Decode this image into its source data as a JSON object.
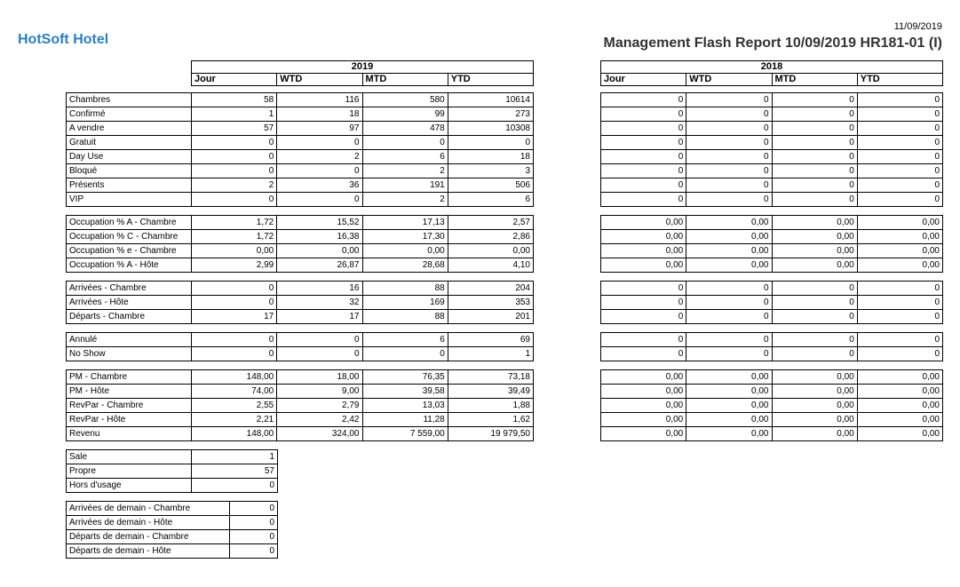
{
  "header": {
    "hotel": "HotSoft Hotel",
    "date": "11/09/2019",
    "title": "Management Flash Report 10/09/2019 HR181-01 (I)"
  },
  "years": [
    "2019",
    "2018"
  ],
  "columns": [
    "Jour",
    "WTD",
    "MTD",
    "YTD"
  ],
  "groups": [
    {
      "rows": [
        {
          "label": "Chambres",
          "values": [
            [
              "58",
              "116",
              "580",
              "10614"
            ],
            [
              "0",
              "0",
              "0",
              "0"
            ]
          ]
        },
        {
          "label": "Confirmé",
          "values": [
            [
              "1",
              "18",
              "99",
              "273"
            ],
            [
              "0",
              "0",
              "0",
              "0"
            ]
          ]
        },
        {
          "label": "A vendre",
          "values": [
            [
              "57",
              "97",
              "478",
              "10308"
            ],
            [
              "0",
              "0",
              "0",
              "0"
            ]
          ]
        },
        {
          "label": "Gratuit",
          "values": [
            [
              "0",
              "0",
              "0",
              "0"
            ],
            [
              "0",
              "0",
              "0",
              "0"
            ]
          ]
        },
        {
          "label": "Day Use",
          "values": [
            [
              "0",
              "2",
              "6",
              "18"
            ],
            [
              "0",
              "0",
              "0",
              "0"
            ]
          ]
        },
        {
          "label": "Bloqué",
          "values": [
            [
              "0",
              "0",
              "2",
              "3"
            ],
            [
              "0",
              "0",
              "0",
              "0"
            ]
          ]
        },
        {
          "label": "Présents",
          "values": [
            [
              "2",
              "36",
              "191",
              "506"
            ],
            [
              "0",
              "0",
              "0",
              "0"
            ]
          ]
        },
        {
          "label": "VIP",
          "values": [
            [
              "0",
              "0",
              "2",
              "6"
            ],
            [
              "0",
              "0",
              "0",
              "0"
            ]
          ]
        }
      ]
    },
    {
      "rows": [
        {
          "label": "Occupation % A - Chambre",
          "values": [
            [
              "1,72",
              "15,52",
              "17,13",
              "2,57"
            ],
            [
              "0,00",
              "0,00",
              "0,00",
              "0,00"
            ]
          ]
        },
        {
          "label": "Occupation % C - Chambre",
          "values": [
            [
              "1,72",
              "16,38",
              "17,30",
              "2,86"
            ],
            [
              "0,00",
              "0,00",
              "0,00",
              "0,00"
            ]
          ]
        },
        {
          "label": "Occupation % e - Chambre",
          "values": [
            [
              "0,00",
              "0,00",
              "0,00",
              "0,00"
            ],
            [
              "0,00",
              "0,00",
              "0,00",
              "0,00"
            ]
          ]
        },
        {
          "label": "Occupation % A - Hôte",
          "values": [
            [
              "2,99",
              "26,87",
              "28,68",
              "4,10"
            ],
            [
              "0,00",
              "0,00",
              "0,00",
              "0,00"
            ]
          ]
        }
      ]
    },
    {
      "rows": [
        {
          "label": "Arrivées - Chambre",
          "values": [
            [
              "0",
              "16",
              "88",
              "204"
            ],
            [
              "0",
              "0",
              "0",
              "0"
            ]
          ]
        },
        {
          "label": "Arrivées - Hôte",
          "values": [
            [
              "0",
              "32",
              "169",
              "353"
            ],
            [
              "0",
              "0",
              "0",
              "0"
            ]
          ]
        },
        {
          "label": "Départs - Chambre",
          "values": [
            [
              "17",
              "17",
              "88",
              "201"
            ],
            [
              "0",
              "0",
              "0",
              "0"
            ]
          ]
        }
      ]
    },
    {
      "rows": [
        {
          "label": "Annulé",
          "values": [
            [
              "0",
              "0",
              "6",
              "69"
            ],
            [
              "0",
              "0",
              "0",
              "0"
            ]
          ]
        },
        {
          "label": "No Show",
          "values": [
            [
              "0",
              "0",
              "0",
              "1"
            ],
            [
              "0",
              "0",
              "0",
              "0"
            ]
          ]
        }
      ]
    },
    {
      "rows": [
        {
          "label": "PM - Chambre",
          "values": [
            [
              "148,00",
              "18,00",
              "76,35",
              "73,18"
            ],
            [
              "0,00",
              "0,00",
              "0,00",
              "0,00"
            ]
          ]
        },
        {
          "label": "PM - Hôte",
          "values": [
            [
              "74,00",
              "9,00",
              "39,58",
              "39,49"
            ],
            [
              "0,00",
              "0,00",
              "0,00",
              "0,00"
            ]
          ]
        },
        {
          "label": "RevPar - Chambre",
          "values": [
            [
              "2,55",
              "2,79",
              "13,03",
              "1,88"
            ],
            [
              "0,00",
              "0,00",
              "0,00",
              "0,00"
            ]
          ]
        },
        {
          "label": "RevPar - Hôte",
          "values": [
            [
              "2,21",
              "2,42",
              "11,28",
              "1,62"
            ],
            [
              "0,00",
              "0,00",
              "0,00",
              "0,00"
            ]
          ]
        },
        {
          "label": "Revenu",
          "values": [
            [
              "148,00",
              "324,00",
              "7 559,00",
              "19 979,50"
            ],
            [
              "0,00",
              "0,00",
              "0,00",
              "0,00"
            ]
          ]
        }
      ]
    }
  ],
  "status": [
    {
      "label": "Sale",
      "value": "1"
    },
    {
      "label": "Propre",
      "value": "57"
    },
    {
      "label": "Hors d'usage",
      "value": "0"
    }
  ],
  "tomorrow": [
    {
      "label": "Arrivées de demain - Chambre",
      "value": "0"
    },
    {
      "label": "Arrivées de demain - Hôte",
      "value": "0"
    },
    {
      "label": "Départs de demain - Chambre",
      "value": "0"
    },
    {
      "label": "Départs de demain - Hôte",
      "value": "0"
    }
  ]
}
